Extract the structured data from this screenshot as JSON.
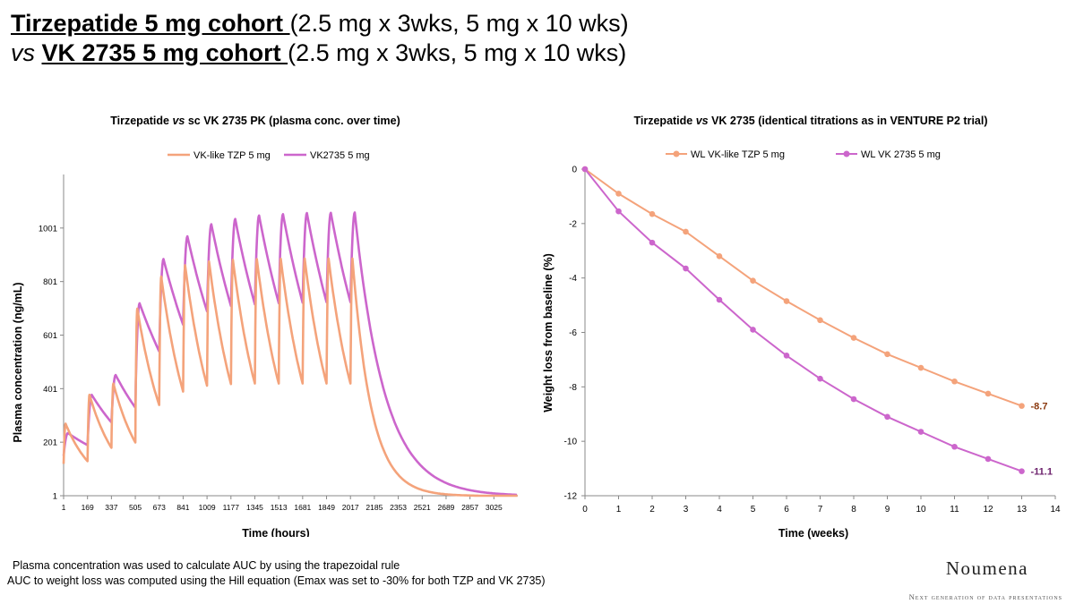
{
  "title": {
    "line1_bold": "Tirzepatide 5 mg cohort ",
    "line1_rest": "(2.5 mg x 3wks, 5 mg x 10 wks)",
    "line2_italic": "vs ",
    "line2_bold": "VK 2735 5 mg cohort ",
    "line2_rest": "(2.5 mg x 3wks, 5 mg x 10 wks)"
  },
  "chart_data": [
    {
      "type": "line",
      "title_pre": "Tirzepatide ",
      "title_italic": "vs",
      "title_post": " sc VK 2735 PK (plasma conc. over time)",
      "xlabel": "Time (hours)",
      "ylabel": "Plasma concentration (ng/mL)",
      "xlim": [
        1,
        3193
      ],
      "ylim": [
        1,
        1201
      ],
      "yticks": [
        "1",
        "201",
        "401",
        "601",
        "801",
        "1001"
      ],
      "xticks": [
        "1",
        "169",
        "337",
        "505",
        "673",
        "841",
        "1009",
        "1177",
        "1345",
        "1513",
        "1681",
        "1849",
        "2017",
        "2185",
        "2353",
        "2521",
        "2689",
        "2857",
        "3025"
      ],
      "legend_position": "top",
      "dose_times_hours": [
        1,
        169,
        337,
        505,
        673,
        841,
        1009,
        1177,
        1345,
        1513,
        1681,
        1849,
        2017
      ],
      "series": [
        {
          "name": "VK-like TZP 5 mg",
          "color": "#F4A37B",
          "description_values": {
            "first_peak": 270,
            "peaks_2_5mg": [
              270,
              378,
              420
            ],
            "peaks_5mg": [
              700,
              820,
              862,
              876,
              882,
              885,
              886,
              887,
              887,
              887
            ],
            "troughs_5mg": [
              340,
              390,
              412,
              418,
              420,
              420,
              420,
              420,
              420
            ]
          }
        },
        {
          "name": "VK2735 5 mg",
          "color": "#CC66CC",
          "description_values": {
            "peaks_2_5mg": [
              235,
              378,
              452
            ],
            "peaks_5mg": [
              720,
              885,
              970,
              1015,
              1035,
              1048,
              1053,
              1057,
              1058,
              1059
            ],
            "troughs_5mg": [
              540,
              640,
              690,
              710,
              716,
              720,
              722,
              724,
              724
            ]
          }
        }
      ]
    },
    {
      "type": "line",
      "title_pre": "Tirzepatide ",
      "title_italic": "vs",
      "title_post": " VK 2735 (identical titrations as in VENTURE P2 trial)",
      "xlabel": "Time (weeks)",
      "ylabel": "Weight loss from baseline (%)",
      "xlim": [
        0,
        14
      ],
      "ylim": [
        -12,
        0
      ],
      "yticks": [
        "0",
        "-2",
        "-4",
        "-6",
        "-8",
        "-10",
        "-12"
      ],
      "xticks": [
        "0",
        "1",
        "2",
        "3",
        "4",
        "5",
        "6",
        "7",
        "8",
        "9",
        "10",
        "11",
        "12",
        "13",
        "14"
      ],
      "legend_position": "top",
      "x": [
        0,
        1,
        2,
        3,
        4,
        5,
        6,
        7,
        8,
        9,
        10,
        11,
        12,
        13
      ],
      "series": [
        {
          "name": "WL VK-like TZP 5 mg",
          "color": "#F4A37B",
          "label_color": "#8B3A10",
          "values": [
            0,
            -0.9,
            -1.65,
            -2.3,
            -3.2,
            -4.1,
            -4.85,
            -5.55,
            -6.2,
            -6.8,
            -7.3,
            -7.8,
            -8.25,
            -8.7
          ],
          "end_label": "-8.7"
        },
        {
          "name": "WL VK 2735 5 mg",
          "color": "#CC66CC",
          "label_color": "#6B1F6B",
          "values": [
            0,
            -1.55,
            -2.7,
            -3.65,
            -4.8,
            -5.9,
            -6.85,
            -7.7,
            -8.45,
            -9.1,
            -9.65,
            -10.2,
            -10.65,
            -11.1
          ],
          "end_label": "-11.1"
        }
      ]
    }
  ],
  "footnotes": {
    "line1": "Plasma concentration was used to calculate AUC by using the trapezoidal rule",
    "line2": "AUC to weight loss was computed using the Hill equation (Emax was set to -30% for both TZP and VK 2735)"
  },
  "brand": {
    "name": "Noumena",
    "tagline": "Next generation of data presentations"
  }
}
